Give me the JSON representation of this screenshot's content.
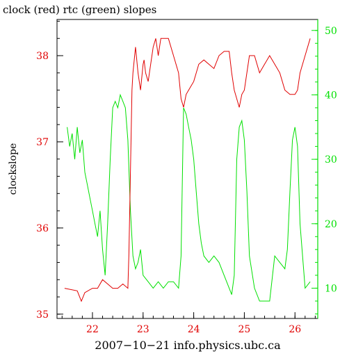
{
  "chart_data": {
    "type": "line",
    "title": "clock (red) rtc (green) slopes",
    "xlabel": "2007−10−21 info.physics.ubc.ca",
    "ylabel": "clockslope",
    "xlim": [
      21.3,
      26.45
    ],
    "x_ticks": [
      22,
      23,
      24,
      25,
      26
    ],
    "x_tick_labels": [
      "22",
      "23",
      "24",
      "25",
      "26"
    ],
    "left_axis": {
      "ylim": [
        34.95,
        38.42
      ],
      "ticks": [
        35,
        36,
        37,
        38
      ],
      "tick_labels": [
        "35",
        "36",
        "37",
        "38"
      ],
      "color": "#e00000"
    },
    "right_axis": {
      "ylim": [
        5.3,
        51.7
      ],
      "ticks": [
        10,
        20,
        30,
        40,
        50
      ],
      "tick_labels": [
        "10",
        "20",
        "30",
        "40",
        "50"
      ],
      "color": "#00e000"
    },
    "grid": false,
    "series": [
      {
        "name": "clock",
        "axis": "left",
        "color": "#e00000",
        "x": [
          21.45,
          21.7,
          21.78,
          21.85,
          22.0,
          22.1,
          22.2,
          22.3,
          22.4,
          22.5,
          22.6,
          22.7,
          22.72,
          22.78,
          22.8,
          22.85,
          22.9,
          22.95,
          23.0,
          23.02,
          23.05,
          23.1,
          23.15,
          23.2,
          23.25,
          23.3,
          23.35,
          23.4,
          23.5,
          23.6,
          23.7,
          23.75,
          23.8,
          23.85,
          23.9,
          24.0,
          24.1,
          24.2,
          24.3,
          24.4,
          24.5,
          24.6,
          24.7,
          24.75,
          24.8,
          24.85,
          24.9,
          24.95,
          25.0,
          25.1,
          25.2,
          25.3,
          25.4,
          25.5,
          25.6,
          25.7,
          25.8,
          25.9,
          26.0,
          26.05,
          26.1,
          26.2,
          26.3
        ],
        "values": [
          35.3,
          35.27,
          35.15,
          35.25,
          35.3,
          35.3,
          35.4,
          35.35,
          35.3,
          35.3,
          35.35,
          35.3,
          35.7,
          37.6,
          37.8,
          38.1,
          37.8,
          37.6,
          37.9,
          37.95,
          37.8,
          37.7,
          37.9,
          38.1,
          38.2,
          38.0,
          38.2,
          38.2,
          38.2,
          38.0,
          37.8,
          37.5,
          37.4,
          37.55,
          37.6,
          37.7,
          37.9,
          37.95,
          37.9,
          37.85,
          38.0,
          38.05,
          38.05,
          37.8,
          37.6,
          37.5,
          37.4,
          37.55,
          37.6,
          38.0,
          38.0,
          37.8,
          37.9,
          38.0,
          37.9,
          37.8,
          37.6,
          37.55,
          37.55,
          37.6,
          37.8,
          38.0,
          38.2
        ]
      },
      {
        "name": "rtc",
        "axis": "right",
        "color": "#00e000",
        "x": [
          21.5,
          21.55,
          21.6,
          21.65,
          21.7,
          21.75,
          21.8,
          21.85,
          21.9,
          21.95,
          22.0,
          22.05,
          22.1,
          22.15,
          22.2,
          22.25,
          22.3,
          22.35,
          22.4,
          22.45,
          22.5,
          22.55,
          22.6,
          22.65,
          22.7,
          22.75,
          22.8,
          22.85,
          22.9,
          22.95,
          23.0,
          23.1,
          23.2,
          23.3,
          23.4,
          23.5,
          23.6,
          23.7,
          23.75,
          23.8,
          23.85,
          23.9,
          23.95,
          24.0,
          24.05,
          24.1,
          24.15,
          24.2,
          24.3,
          24.4,
          24.5,
          24.6,
          24.7,
          24.75,
          24.8,
          24.85,
          24.9,
          24.95,
          25.0,
          25.05,
          25.1,
          25.2,
          25.3,
          25.4,
          25.5,
          25.6,
          25.7,
          25.8,
          25.85,
          25.9,
          25.95,
          26.0,
          26.05,
          26.1,
          26.2,
          26.3
        ],
        "values": [
          35,
          32,
          34,
          30,
          35,
          31,
          33,
          28,
          26,
          24,
          22,
          20,
          18,
          22,
          16,
          12,
          20,
          30,
          38,
          39,
          38,
          40,
          39,
          38,
          33,
          22,
          15,
          13,
          14,
          16,
          12,
          11,
          10,
          11,
          10,
          11,
          11,
          10,
          15,
          38,
          37,
          35,
          33,
          30,
          25,
          20,
          17,
          15,
          14,
          15,
          14,
          12,
          10,
          9,
          12,
          30,
          35,
          36,
          33,
          25,
          15,
          10,
          8,
          8,
          8,
          15,
          14,
          13,
          16,
          25,
          33,
          35,
          32,
          20,
          10,
          11
        ]
      }
    ]
  }
}
